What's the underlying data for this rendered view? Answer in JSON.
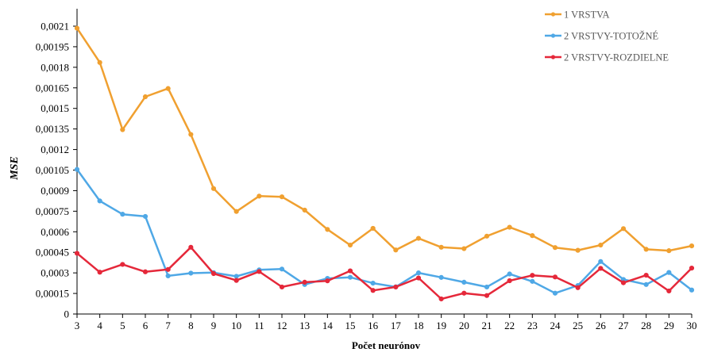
{
  "chart_data": {
    "type": "line",
    "xlabel": "Počet neurónov",
    "ylabel": "MSE",
    "x": [
      3,
      4,
      5,
      6,
      7,
      8,
      9,
      10,
      11,
      12,
      13,
      14,
      15,
      16,
      17,
      18,
      19,
      20,
      21,
      22,
      23,
      24,
      25,
      26,
      27,
      28,
      29,
      30
    ],
    "ylim": [
      0,
      0.0021
    ],
    "yticks": [
      "0",
      "0,00015",
      "0,0003",
      "0,00045",
      "0,0006",
      "0,00075",
      "0,0009",
      "0,00105",
      "0,0012",
      "0,00135",
      "0,0015",
      "0,00165",
      "0,0018",
      "0,00195",
      "0,0021"
    ],
    "legend_position": "top-right",
    "grid": false,
    "series": [
      {
        "name": "1 VRSTVA",
        "color": "#F0A030",
        "values": [
          0.002085,
          0.001835,
          0.001345,
          0.001585,
          0.001645,
          0.00131,
          0.000915,
          0.000748,
          0.00086,
          0.000855,
          0.000758,
          0.000617,
          0.000503,
          0.000625,
          0.000467,
          0.000552,
          0.000487,
          0.000477,
          0.000568,
          0.000633,
          0.000572,
          0.000485,
          0.000465,
          0.000503,
          0.000623,
          0.000472,
          0.000462,
          0.000497
        ]
      },
      {
        "name": "2 VRSTVY-TOTOŽNÉ",
        "color": "#4FA8E6",
        "values": [
          0.001055,
          0.000825,
          0.000728,
          0.000712,
          0.000278,
          0.000298,
          0.000302,
          0.000275,
          0.000322,
          0.000328,
          0.000215,
          0.00026,
          0.000268,
          0.000225,
          0.000198,
          0.0003,
          0.000267,
          0.000232,
          0.000197,
          0.000292,
          0.000238,
          0.000152,
          0.000208,
          0.000383,
          0.000252,
          0.000215,
          0.000303,
          0.000175
        ]
      },
      {
        "name": "2 VRSTVY-ROZDIELNE",
        "color": "#E5283A",
        "values": [
          0.000443,
          0.000305,
          0.000362,
          0.000308,
          0.000325,
          0.000487,
          0.000295,
          0.000245,
          0.00031,
          0.000197,
          0.000232,
          0.000242,
          0.000315,
          0.000172,
          0.000197,
          0.000263,
          0.00011,
          0.000152,
          0.000135,
          0.000243,
          0.000282,
          0.00027,
          0.000192,
          0.000333,
          0.000228,
          0.000283,
          0.000168,
          0.000335
        ]
      }
    ]
  }
}
